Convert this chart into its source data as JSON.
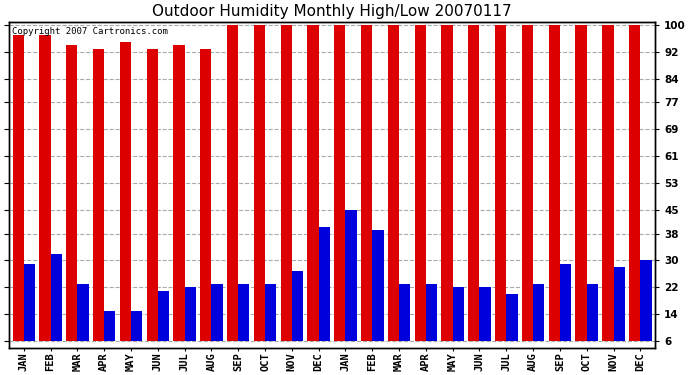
{
  "title": "Outdoor Humidity Monthly High/Low 20070117",
  "copyright": "Copyright 2007 Cartronics.com",
  "months": [
    "JAN",
    "FEB",
    "MAR",
    "APR",
    "MAY",
    "JUN",
    "JUL",
    "AUG",
    "SEP",
    "OCT",
    "NOV",
    "DEC",
    "JAN",
    "FEB",
    "MAR",
    "APR",
    "MAY",
    "JUN",
    "JUL",
    "AUG",
    "SEP",
    "OCT",
    "NOV",
    "DEC"
  ],
  "highs": [
    97,
    97,
    94,
    93,
    95,
    93,
    94,
    93,
    100,
    100,
    100,
    100,
    100,
    100,
    100,
    100,
    100,
    100,
    100,
    100,
    100,
    100,
    100,
    100
  ],
  "lows": [
    29,
    32,
    23,
    15,
    15,
    21,
    22,
    23,
    23,
    23,
    27,
    40,
    45,
    39,
    23,
    23,
    22,
    22,
    20,
    23,
    29,
    23,
    28,
    30
  ],
  "high_color": "#dd0000",
  "low_color": "#0000dd",
  "bg_color": "#ffffff",
  "grid_color": "#aaaaaa",
  "yticks": [
    6,
    14,
    22,
    30,
    38,
    45,
    53,
    61,
    69,
    77,
    84,
    92,
    100
  ],
  "ymin": 6,
  "ymax": 100,
  "bar_width": 0.42,
  "title_fontsize": 11,
  "tick_fontsize": 7.5,
  "copyright_fontsize": 6.5
}
